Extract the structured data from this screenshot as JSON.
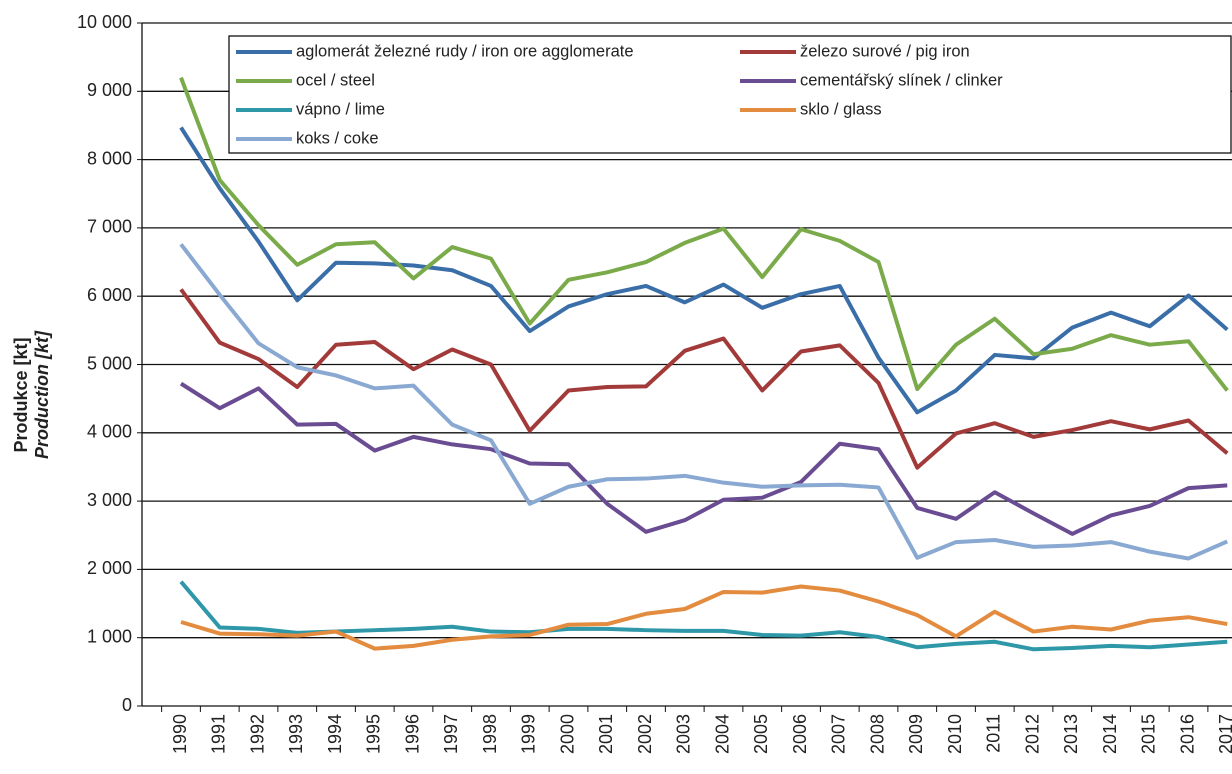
{
  "chart_data": {
    "type": "line",
    "y_label": [
      "Produkce [kt]",
      "Production [kt]"
    ],
    "categories": [
      "1990",
      "1991",
      "1992",
      "1993",
      "1994",
      "1995",
      "1996",
      "1997",
      "1998",
      "1999",
      "2000",
      "2001",
      "2002",
      "2003",
      "2004",
      "2005",
      "2006",
      "2007",
      "2008",
      "2009",
      "2010",
      "2011",
      "2012",
      "2013",
      "2014",
      "2015",
      "2016",
      "2017"
    ],
    "series": [
      {
        "name": "aglomerát železné rudy / iron ore agglomerate",
        "color": "#3a6ea8",
        "values": [
          8470,
          7580,
          6800,
          5940,
          6490,
          6480,
          6450,
          6380,
          6150,
          5490,
          5850,
          6030,
          6150,
          5910,
          6170,
          5830,
          6030,
          6150,
          5100,
          4300,
          4620,
          5140,
          5090,
          5540,
          5760,
          5560,
          6010,
          5510
        ]
      },
      {
        "name": "železo surové / pig iron",
        "color": "#a33a3a",
        "values": [
          6100,
          5320,
          5080,
          4670,
          5290,
          5330,
          4930,
          5220,
          5000,
          4030,
          4620,
          4670,
          4680,
          5200,
          5380,
          4620,
          5190,
          5280,
          4730,
          3490,
          3990,
          4140,
          3940,
          4040,
          4170,
          4050,
          4180,
          3700
        ]
      },
      {
        "name": "ocel / steel",
        "color": "#7aaa4a",
        "values": [
          9200,
          7700,
          7040,
          6460,
          6760,
          6790,
          6260,
          6720,
          6550,
          5600,
          6240,
          6350,
          6500,
          6780,
          6990,
          6280,
          6980,
          6810,
          6500,
          4640,
          5290,
          5670,
          5150,
          5230,
          5430,
          5290,
          5340,
          4620
        ]
      },
      {
        "name": "cementářský slínek / clinker",
        "color": "#6a4c93",
        "values": [
          4720,
          4360,
          4650,
          4120,
          4130,
          3740,
          3940,
          3830,
          3760,
          3550,
          3540,
          2960,
          2550,
          2720,
          3020,
          3050,
          3280,
          3840,
          3760,
          2900,
          2740,
          3130,
          2820,
          2520,
          2790,
          2930,
          3190,
          3230
        ]
      },
      {
        "name": "vápno / lime",
        "color": "#2e98a8",
        "values": [
          1820,
          1150,
          1130,
          1070,
          1090,
          1110,
          1130,
          1160,
          1090,
          1080,
          1130,
          1130,
          1110,
          1100,
          1100,
          1040,
          1030,
          1080,
          1010,
          860,
          910,
          940,
          830,
          850,
          880,
          860,
          900,
          940
        ]
      },
      {
        "name": "sklo / glass",
        "color": "#e38b3e",
        "values": [
          1230,
          1060,
          1050,
          1030,
          1090,
          840,
          880,
          970,
          1020,
          1040,
          1190,
          1200,
          1350,
          1420,
          1670,
          1660,
          1750,
          1690,
          1530,
          1330,
          1020,
          1380,
          1090,
          1160,
          1120,
          1250,
          1300,
          1200
        ]
      },
      {
        "name": "koks / coke",
        "color": "#8aa9d2",
        "values": [
          6760,
          6020,
          5310,
          4960,
          4840,
          4650,
          4690,
          4120,
          3890,
          2960,
          3210,
          3320,
          3330,
          3370,
          3270,
          3210,
          3230,
          3240,
          3200,
          2170,
          2400,
          2430,
          2330,
          2350,
          2400,
          2260,
          2160,
          2410
        ]
      }
    ],
    "ylim": [
      0,
      10000
    ],
    "yticks": [
      0,
      {
        "value": 1000,
        "label": "1 000"
      },
      {
        "value": 2000,
        "label": "2 000"
      },
      {
        "value": 3000,
        "label": "3 000"
      },
      {
        "value": 4000,
        "label": "4 000"
      },
      {
        "value": 5000,
        "label": "5 000"
      },
      {
        "value": 6000,
        "label": "6 000"
      },
      {
        "value": 7000,
        "label": "7 000"
      },
      {
        "value": 8000,
        "label": "8 000"
      },
      {
        "value": 9000,
        "label": "9 000"
      },
      {
        "value": 10000,
        "label": "10 000"
      }
    ],
    "grid": true
  }
}
